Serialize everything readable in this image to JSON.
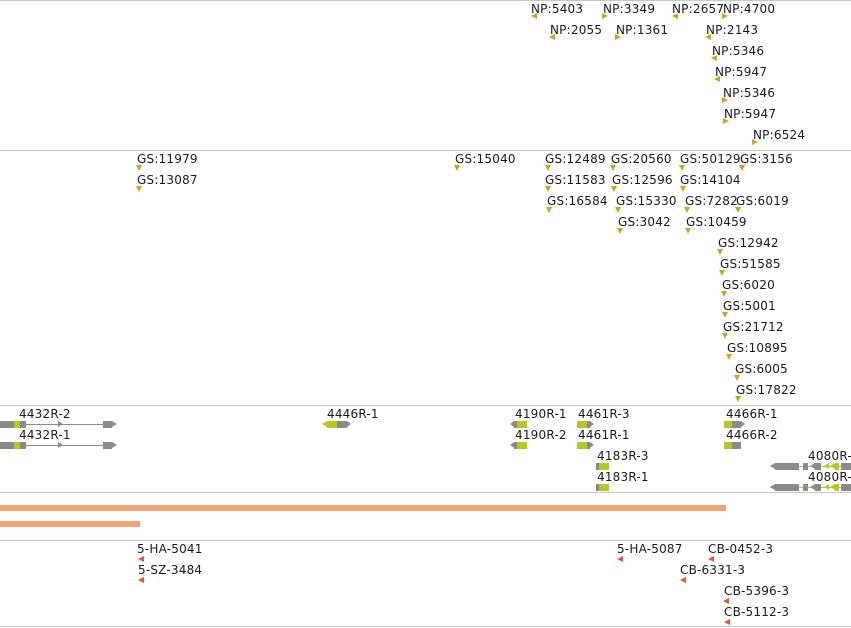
{
  "colors": {
    "marker_gold": "#d9a013",
    "marker_red": "#e8542c",
    "exon_lime": "#b7c81e",
    "gene_grey": "#8a8a8a",
    "coverage_bar": "#f4a472",
    "separator": "#c8c8c8"
  },
  "np_track": {
    "features": [
      "NP:5403",
      "NP:3349",
      "NP:2657",
      "NP:4700",
      "NP:2055",
      "NP:1361",
      "NP:2143",
      "NP:5346",
      "NP:5947",
      "NP:5346",
      "NP:5947",
      "NP:6524"
    ]
  },
  "gs_track": {
    "features": [
      "GS:11979",
      "GS:13087",
      "GS:15040",
      "GS:12489",
      "GS:11583",
      "GS:16584",
      "GS:20560",
      "GS:12596",
      "GS:15330",
      "GS:3042",
      "GS:50129",
      "GS:14104",
      "GS:7282",
      "GS:10459",
      "GS:3156",
      "GS:6019",
      "GS:12942",
      "GS:51585",
      "GS:6020",
      "GS:5001",
      "GS:21712",
      "GS:10895",
      "GS:6005",
      "GS:17822"
    ]
  },
  "gene_track": {
    "features": [
      "4432R-2",
      "4432R-1",
      "4446R-1",
      "4190R-1",
      "4190R-2",
      "4461R-3",
      "4461R-1",
      "4183R-3",
      "4183R-1",
      "4466R-1",
      "4466R-2",
      "4080R-",
      "4080R-"
    ]
  },
  "coverage_track": {
    "bars": [
      {
        "fraction": 0.853
      },
      {
        "fraction": 0.165
      }
    ]
  },
  "sample_track": {
    "features": [
      "5-HA-5041",
      "5-SZ-3484",
      "5-HA-5087",
      "CB-0452-3",
      "CB-6331-3",
      "CB-5396-3",
      "CB-5112-3"
    ]
  }
}
